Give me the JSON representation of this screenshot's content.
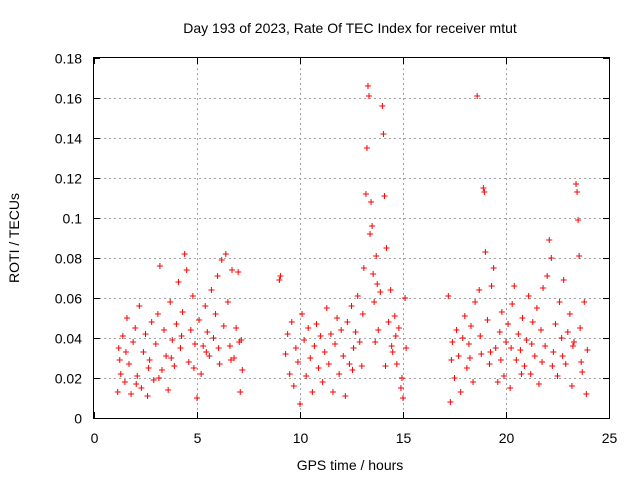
{
  "chart_data": {
    "type": "scatter",
    "title": "Day 193 of 2023, Rate Of TEC Index for receiver mtut",
    "xlabel": "GPS time / hours",
    "ylabel": "ROTI / TECUs",
    "xlim": [
      0,
      25
    ],
    "ylim": [
      0,
      0.18
    ],
    "xticks": [
      0,
      5,
      10,
      15,
      20,
      25
    ],
    "yticks": [
      0,
      0.02,
      0.04,
      0.06,
      0.08,
      0.1,
      0.12,
      0.14,
      0.16,
      0.18
    ],
    "xtick_labels": [
      "0",
      "5",
      "10",
      "15",
      "20",
      "25"
    ],
    "ytick_labels": [
      "0",
      "0.02",
      "0.04",
      "0.06",
      "0.08",
      "0.1",
      "0.12",
      "0.14",
      "0.16",
      "0.18"
    ],
    "grid": true,
    "marker": "+",
    "color": "#ff0000",
    "series": [
      {
        "points": [
          [
            1.15,
            0.013
          ],
          [
            1.2,
            0.035
          ],
          [
            1.3,
            0.022
          ],
          [
            1.4,
            0.041
          ],
          [
            1.5,
            0.018
          ],
          [
            1.6,
            0.05
          ],
          [
            1.7,
            0.027
          ],
          [
            1.8,
            0.012
          ],
          [
            1.9,
            0.038
          ],
          [
            2.0,
            0.045
          ],
          [
            2.1,
            0.021
          ],
          [
            2.2,
            0.056
          ],
          [
            2.3,
            0.015
          ],
          [
            2.4,
            0.033
          ],
          [
            2.5,
            0.042
          ],
          [
            2.6,
            0.011
          ],
          [
            2.7,
            0.029
          ],
          [
            2.8,
            0.048
          ],
          [
            2.9,
            0.019
          ],
          [
            3.0,
            0.037
          ],
          [
            3.1,
            0.052
          ],
          [
            3.2,
            0.076
          ],
          [
            3.3,
            0.024
          ],
          [
            3.4,
            0.044
          ],
          [
            3.5,
            0.031
          ],
          [
            3.6,
            0.014
          ],
          [
            3.7,
            0.058
          ],
          [
            3.8,
            0.039
          ],
          [
            3.9,
            0.026
          ],
          [
            4.0,
            0.047
          ],
          [
            4.1,
            0.068
          ],
          [
            4.2,
            0.035
          ],
          [
            4.3,
            0.053
          ],
          [
            4.4,
            0.082
          ],
          [
            4.5,
            0.074
          ],
          [
            4.6,
            0.028
          ],
          [
            4.7,
            0.044
          ],
          [
            4.8,
            0.061
          ],
          [
            4.9,
            0.037
          ],
          [
            5.0,
            0.01
          ],
          [
            5.1,
            0.049
          ],
          [
            5.2,
            0.022
          ],
          [
            5.3,
            0.036
          ],
          [
            5.4,
            0.056
          ],
          [
            5.5,
            0.043
          ],
          [
            5.6,
            0.031
          ],
          [
            5.7,
            0.064
          ],
          [
            5.8,
            0.04
          ],
          [
            5.9,
            0.052
          ],
          [
            6.0,
            0.071
          ],
          [
            6.1,
            0.027
          ],
          [
            6.2,
            0.079
          ],
          [
            6.3,
            0.046
          ],
          [
            6.4,
            0.082
          ],
          [
            6.5,
            0.058
          ],
          [
            6.6,
            0.036
          ],
          [
            6.7,
            0.074
          ],
          [
            6.8,
            0.03
          ],
          [
            6.9,
            0.045
          ],
          [
            7.0,
            0.073
          ],
          [
            7.1,
            0.013
          ],
          [
            7.15,
            0.039
          ],
          [
            7.2,
            0.024
          ],
          [
            1.25,
            0.029
          ],
          [
            1.55,
            0.033
          ],
          [
            2.05,
            0.017
          ],
          [
            2.65,
            0.025
          ],
          [
            3.15,
            0.02
          ],
          [
            3.75,
            0.03
          ],
          [
            4.25,
            0.041
          ],
          [
            4.85,
            0.025
          ],
          [
            5.45,
            0.033
          ],
          [
            6.05,
            0.035
          ],
          [
            6.65,
            0.029
          ],
          [
            7.05,
            0.038
          ],
          [
            9.0,
            0.069
          ],
          [
            9.05,
            0.071
          ],
          [
            9.3,
            0.032
          ],
          [
            9.4,
            0.042
          ],
          [
            9.5,
            0.022
          ],
          [
            9.6,
            0.048
          ],
          [
            9.7,
            0.016
          ],
          [
            9.8,
            0.035
          ],
          [
            9.9,
            0.028
          ],
          [
            10.0,
            0.007
          ],
          [
            10.1,
            0.052
          ],
          [
            10.2,
            0.039
          ],
          [
            10.3,
            0.021
          ],
          [
            10.4,
            0.045
          ],
          [
            10.5,
            0.03
          ],
          [
            10.6,
            0.013
          ],
          [
            10.7,
            0.036
          ],
          [
            10.8,
            0.047
          ],
          [
            10.9,
            0.025
          ],
          [
            11.0,
            0.041
          ],
          [
            11.1,
            0.018
          ],
          [
            11.2,
            0.033
          ],
          [
            11.3,
            0.055
          ],
          [
            11.4,
            0.027
          ],
          [
            11.5,
            0.042
          ],
          [
            11.6,
            0.013
          ],
          [
            11.7,
            0.037
          ],
          [
            11.8,
            0.05
          ],
          [
            11.9,
            0.022
          ],
          [
            12.0,
            0.044
          ],
          [
            12.1,
            0.031
          ],
          [
            12.2,
            0.011
          ],
          [
            12.3,
            0.048
          ],
          [
            12.4,
            0.027
          ],
          [
            12.5,
            0.056
          ],
          [
            12.6,
            0.035
          ],
          [
            12.7,
            0.043
          ],
          [
            12.8,
            0.061
          ],
          [
            12.9,
            0.038
          ],
          [
            13.0,
            0.026
          ],
          [
            13.1,
            0.075
          ],
          [
            13.2,
            0.112
          ],
          [
            13.25,
            0.135
          ],
          [
            13.3,
            0.166
          ],
          [
            13.35,
            0.161
          ],
          [
            13.4,
            0.092
          ],
          [
            13.5,
            0.096
          ],
          [
            13.6,
            0.058
          ],
          [
            13.7,
            0.081
          ],
          [
            13.8,
            0.044
          ],
          [
            13.9,
            0.063
          ],
          [
            14.0,
            0.156
          ],
          [
            14.05,
            0.142
          ],
          [
            14.1,
            0.111
          ],
          [
            14.2,
            0.085
          ],
          [
            14.3,
            0.048
          ],
          [
            14.4,
            0.064
          ],
          [
            14.5,
            0.033
          ],
          [
            14.6,
            0.051
          ],
          [
            14.7,
            0.027
          ],
          [
            14.8,
            0.045
          ],
          [
            14.9,
            0.015
          ],
          [
            15.0,
            0.01
          ],
          [
            15.1,
            0.06
          ],
          [
            15.15,
            0.035
          ],
          [
            13.45,
            0.108
          ],
          [
            13.55,
            0.072
          ],
          [
            13.65,
            0.038
          ],
          [
            13.75,
            0.067
          ],
          [
            14.15,
            0.026
          ],
          [
            14.45,
            0.036
          ],
          [
            14.65,
            0.041
          ],
          [
            14.95,
            0.02
          ],
          [
            13.05,
            0.052
          ],
          [
            12.55,
            0.024
          ],
          [
            17.2,
            0.061
          ],
          [
            17.3,
            0.008
          ],
          [
            17.4,
            0.038
          ],
          [
            17.5,
            0.02
          ],
          [
            17.6,
            0.044
          ],
          [
            17.7,
            0.031
          ],
          [
            17.8,
            0.013
          ],
          [
            17.9,
            0.04
          ],
          [
            18.0,
            0.051
          ],
          [
            18.1,
            0.025
          ],
          [
            18.2,
            0.037
          ],
          [
            18.3,
            0.046
          ],
          [
            18.4,
            0.018
          ],
          [
            18.5,
            0.058
          ],
          [
            18.6,
            0.161
          ],
          [
            18.7,
            0.064
          ],
          [
            18.8,
            0.032
          ],
          [
            18.9,
            0.115
          ],
          [
            18.95,
            0.113
          ],
          [
            19.0,
            0.083
          ],
          [
            19.1,
            0.049
          ],
          [
            19.2,
            0.027
          ],
          [
            19.3,
            0.066
          ],
          [
            19.4,
            0.075
          ],
          [
            19.5,
            0.035
          ],
          [
            19.6,
            0.018
          ],
          [
            19.7,
            0.043
          ],
          [
            19.8,
            0.053
          ],
          [
            19.9,
            0.021
          ],
          [
            20.0,
            0.038
          ],
          [
            20.1,
            0.047
          ],
          [
            20.2,
            0.015
          ],
          [
            20.3,
            0.057
          ],
          [
            20.4,
            0.066
          ],
          [
            20.5,
            0.029
          ],
          [
            20.6,
            0.042
          ],
          [
            20.7,
            0.034
          ],
          [
            20.8,
            0.05
          ],
          [
            20.9,
            0.026
          ],
          [
            21.0,
            0.039
          ],
          [
            21.1,
            0.061
          ],
          [
            21.2,
            0.022
          ],
          [
            21.3,
            0.048
          ],
          [
            21.4,
            0.031
          ],
          [
            21.5,
            0.055
          ],
          [
            21.6,
            0.017
          ],
          [
            21.7,
            0.044
          ],
          [
            21.8,
            0.065
          ],
          [
            21.9,
            0.036
          ],
          [
            22.0,
            0.071
          ],
          [
            22.1,
            0.089
          ],
          [
            22.2,
            0.08
          ],
          [
            22.3,
            0.033
          ],
          [
            22.4,
            0.047
          ],
          [
            22.5,
            0.021
          ],
          [
            22.6,
            0.058
          ],
          [
            22.7,
            0.04
          ],
          [
            22.8,
            0.069
          ],
          [
            22.9,
            0.027
          ],
          [
            23.0,
            0.043
          ],
          [
            23.1,
            0.052
          ],
          [
            23.2,
            0.016
          ],
          [
            23.3,
            0.038
          ],
          [
            23.4,
            0.117
          ],
          [
            23.45,
            0.113
          ],
          [
            23.5,
            0.099
          ],
          [
            23.55,
            0.081
          ],
          [
            23.6,
            0.045
          ],
          [
            23.7,
            0.023
          ],
          [
            23.8,
            0.058
          ],
          [
            23.9,
            0.012
          ],
          [
            23.95,
            0.034
          ],
          [
            18.25,
            0.03
          ],
          [
            18.75,
            0.041
          ],
          [
            19.25,
            0.033
          ],
          [
            19.75,
            0.029
          ],
          [
            20.25,
            0.035
          ],
          [
            20.75,
            0.022
          ],
          [
            21.25,
            0.037
          ],
          [
            21.75,
            0.028
          ],
          [
            22.25,
            0.026
          ],
          [
            22.75,
            0.031
          ],
          [
            23.25,
            0.036
          ],
          [
            23.65,
            0.028
          ],
          [
            17.35,
            0.029
          ]
        ]
      }
    ]
  }
}
